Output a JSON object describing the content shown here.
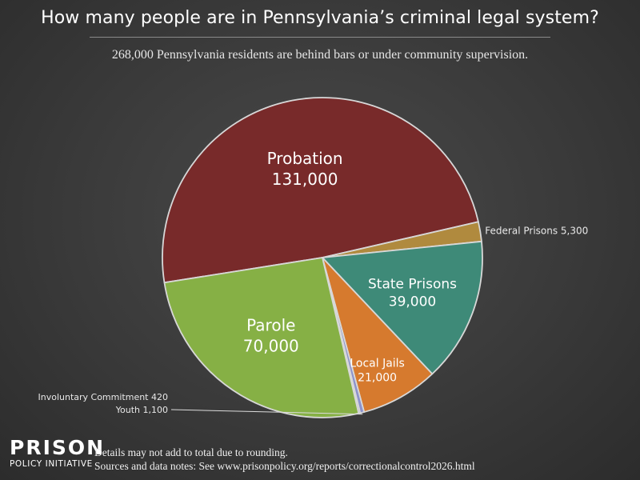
{
  "header": {
    "title": "How many people are in Pennsylvania’s criminal legal system?",
    "subtitle": "268,000 Pennsylvania residents are behind bars or under community supervision."
  },
  "chart_data": {
    "type": "pie",
    "slices": [
      {
        "label": "Probation",
        "value_label": "131,000",
        "value": 131000,
        "color": "#782a2a",
        "label_inside": true
      },
      {
        "label": "Federal Prisons",
        "value_label": "5,300",
        "value": 5300,
        "color": "#b08a3e",
        "label_inside": false
      },
      {
        "label": "State Prisons",
        "value_label": "39,000",
        "value": 39000,
        "color": "#3e8a78",
        "label_inside": true
      },
      {
        "label": "Local Jails",
        "value_label": "21,000",
        "value": 21000,
        "color": "#d67a2e",
        "label_inside": true
      },
      {
        "label": "Youth",
        "value_label": "1,100",
        "value": 1100,
        "color": "#8c92cc",
        "label_inside": false
      },
      {
        "label": "Involuntary Commitment",
        "value_label": "420",
        "value": 420,
        "color": "#3a4ba8",
        "label_inside": false
      },
      {
        "label": "Parole",
        "value_label": "70,000",
        "value": 70000,
        "color": "#86b045",
        "label_inside": true
      }
    ]
  },
  "footer": {
    "logo_line1": "PRISON",
    "logo_line2": "POLICY INITIATIVE",
    "note1": "Details may not add to total due to rounding.",
    "note2": "Sources and data notes: See www.prisonpolicy.org/reports/correctionalcontrol2026.html"
  },
  "colors": {
    "background": "#3a3a3a",
    "text": "#ffffff",
    "slice_border": "#d8d8d8"
  }
}
